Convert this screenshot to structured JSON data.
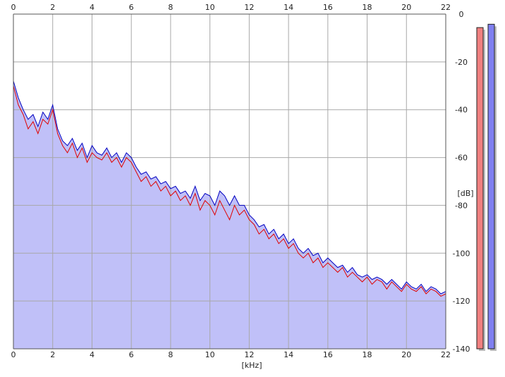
{
  "chart_data": {
    "type": "area",
    "xlabel": "[kHz]",
    "ylabel": "[dB]",
    "xlim": [
      0,
      22
    ],
    "ylim": [
      -140,
      0
    ],
    "x_ticks": [
      0,
      2,
      4,
      6,
      8,
      10,
      12,
      14,
      16,
      18,
      20,
      22
    ],
    "y_ticks": [
      0,
      -20,
      -40,
      -60,
      -80,
      -100,
      -120,
      -140
    ],
    "grid": true,
    "fill_color": "#c0c0f8",
    "series": [
      {
        "color": "#e00000",
        "x": [
          0,
          0.25,
          0.5,
          0.75,
          1,
          1.25,
          1.5,
          1.75,
          2,
          2.25,
          2.5,
          2.75,
          3,
          3.25,
          3.5,
          3.75,
          4,
          4.25,
          4.5,
          4.75,
          5,
          5.25,
          5.5,
          5.75,
          6,
          6.25,
          6.5,
          6.75,
          7,
          7.25,
          7.5,
          7.75,
          8,
          8.25,
          8.5,
          8.75,
          9,
          9.25,
          9.5,
          9.75,
          10,
          10.25,
          10.5,
          10.75,
          11,
          11.25,
          11.5,
          11.75,
          12,
          12.25,
          12.5,
          12.75,
          13,
          13.25,
          13.5,
          13.75,
          14,
          14.25,
          14.5,
          14.75,
          15,
          15.25,
          15.5,
          15.75,
          16,
          16.25,
          16.5,
          16.75,
          17,
          17.25,
          17.5,
          17.75,
          18,
          18.25,
          18.5,
          18.75,
          19,
          19.25,
          19.5,
          19.75,
          20,
          20.25,
          20.5,
          20.75,
          21,
          21.25,
          21.5,
          21.75,
          22
        ],
        "values": [
          -30,
          -38,
          -42,
          -48,
          -45,
          -50,
          -44,
          -46,
          -40,
          -50,
          -55,
          -58,
          -54,
          -60,
          -56,
          -62,
          -58,
          -60,
          -61,
          -58,
          -62,
          -60,
          -64,
          -60,
          -62,
          -66,
          -70,
          -68,
          -72,
          -70,
          -74,
          -72,
          -76,
          -74,
          -78,
          -76,
          -80,
          -75,
          -82,
          -78,
          -80,
          -84,
          -78,
          -82,
          -86,
          -80,
          -84,
          -82,
          -86,
          -88,
          -92,
          -90,
          -94,
          -92,
          -96,
          -94,
          -98,
          -96,
          -100,
          -102,
          -100,
          -104,
          -102,
          -106,
          -104,
          -106,
          -108,
          -106,
          -110,
          -108,
          -110,
          -112,
          -110,
          -113,
          -111,
          -112,
          -115,
          -112,
          -114,
          -116,
          -113,
          -115,
          -116,
          -114,
          -117,
          -115,
          -116,
          -118,
          -117
        ]
      },
      {
        "color": "#0000c0",
        "x": [
          0,
          0.25,
          0.5,
          0.75,
          1,
          1.25,
          1.5,
          1.75,
          2,
          2.25,
          2.5,
          2.75,
          3,
          3.25,
          3.5,
          3.75,
          4,
          4.25,
          4.5,
          4.75,
          5,
          5.25,
          5.5,
          5.75,
          6,
          6.25,
          6.5,
          6.75,
          7,
          7.25,
          7.5,
          7.75,
          8,
          8.25,
          8.5,
          8.75,
          9,
          9.25,
          9.5,
          9.75,
          10,
          10.25,
          10.5,
          10.75,
          11,
          11.25,
          11.5,
          11.75,
          12,
          12.25,
          12.5,
          12.75,
          13,
          13.25,
          13.5,
          13.75,
          14,
          14.25,
          14.5,
          14.75,
          15,
          15.25,
          15.5,
          15.75,
          16,
          16.25,
          16.5,
          16.75,
          17,
          17.25,
          17.5,
          17.75,
          18,
          18.25,
          18.5,
          18.75,
          19,
          19.25,
          19.5,
          19.75,
          20,
          20.25,
          20.5,
          20.75,
          21,
          21.25,
          21.5,
          21.75,
          22
        ],
        "values": [
          -28,
          -35,
          -40,
          -44,
          -42,
          -47,
          -41,
          -44,
          -38,
          -48,
          -53,
          -55,
          -52,
          -57,
          -54,
          -60,
          -55,
          -58,
          -59,
          -56,
          -60,
          -58,
          -62,
          -58,
          -60,
          -64,
          -67,
          -66,
          -69,
          -68,
          -71,
          -70,
          -73,
          -72,
          -75,
          -74,
          -77,
          -72,
          -78,
          -75,
          -76,
          -80,
          -74,
          -76,
          -80,
          -76,
          -80,
          -80,
          -84,
          -86,
          -89,
          -88,
          -92,
          -90,
          -94,
          -92,
          -96,
          -94,
          -98,
          -100,
          -98,
          -101,
          -100,
          -104,
          -102,
          -104,
          -106,
          -105,
          -108,
          -106,
          -109,
          -110,
          -109,
          -111,
          -110,
          -111,
          -113,
          -111,
          -113,
          -115,
          -112,
          -114,
          -115,
          -113,
          -116,
          -114,
          -115,
          -117,
          -116
        ]
      }
    ]
  },
  "side_meters": [
    {
      "color": "#f08080",
      "level": 0.985
    },
    {
      "color": "#8080f0",
      "level": 0.995
    }
  ]
}
